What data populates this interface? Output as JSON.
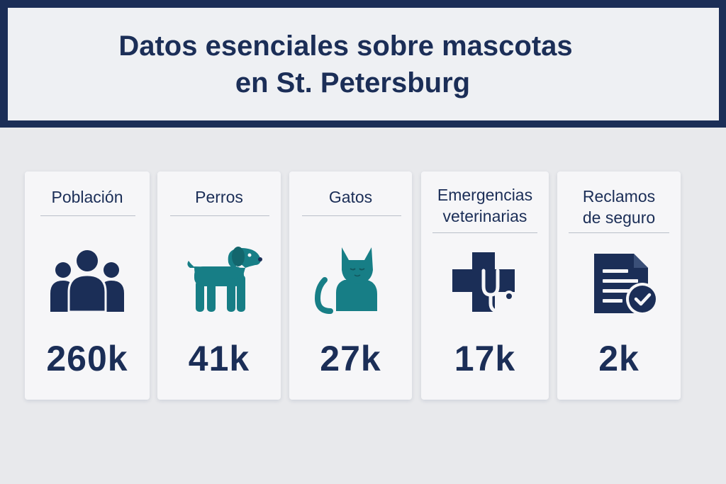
{
  "title": {
    "line1": "Datos esenciales sobre mascotas",
    "line2": "en St. Petersburg"
  },
  "colors": {
    "navy": "#1b2e57",
    "teal": "#177e86",
    "background": "#e8e9ec",
    "card": "#f6f6f8"
  },
  "cards": [
    {
      "label": [
        "Población"
      ],
      "icon": "people-group-icon",
      "value": "260k"
    },
    {
      "label": [
        "Perros"
      ],
      "icon": "dog-icon",
      "value": "41k"
    },
    {
      "label": [
        "Gatos"
      ],
      "icon": "cat-icon",
      "value": "27k"
    },
    {
      "label": [
        "Emergencias",
        "veterinarias"
      ],
      "icon": "medical-cross-stethoscope-icon",
      "value": "17k"
    },
    {
      "label": [
        "Reclamos",
        "de seguro"
      ],
      "icon": "insurance-claim-document-icon",
      "value": "2k"
    }
  ]
}
